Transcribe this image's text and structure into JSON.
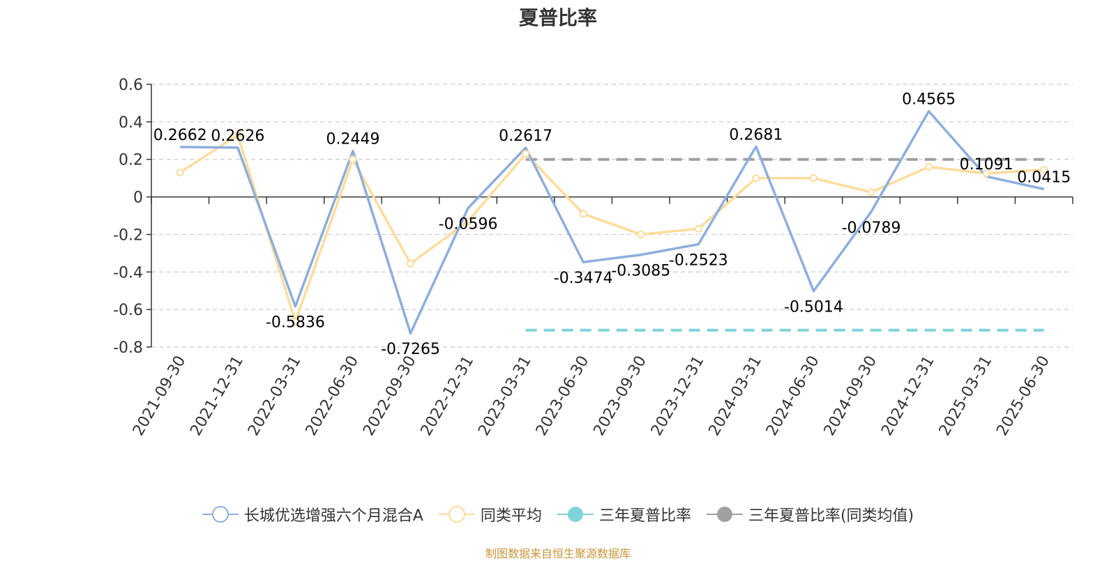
{
  "chart_data": {
    "type": "line",
    "title": "夏普比率",
    "categories": [
      "2021-09-30",
      "2021-12-31",
      "2022-03-31",
      "2022-06-30",
      "2022-09-30",
      "2022-12-31",
      "2023-03-31",
      "2023-06-30",
      "2023-09-30",
      "2023-12-31",
      "2024-03-31",
      "2024-06-30",
      "2024-09-30",
      "2024-12-31",
      "2025-03-31",
      "2025-06-30"
    ],
    "ylim": [
      -0.8,
      0.6
    ],
    "yticks": [
      -0.8,
      -0.6,
      -0.4,
      -0.2,
      0,
      0.2,
      0.4,
      0.6
    ],
    "ytick_labels": [
      "-0.8",
      "-0.6",
      "-0.4",
      "-0.2",
      "0",
      "0.2",
      "0.4",
      "0.6"
    ],
    "grid": true,
    "legend_position": "bottom",
    "series": [
      {
        "name": "长城优选增强六个月混合A",
        "color": "#8eaedc",
        "values": [
          0.2662,
          0.2626,
          -0.5836,
          0.2449,
          -0.7265,
          -0.0596,
          0.2617,
          -0.3474,
          -0.3085,
          -0.2523,
          0.2681,
          -0.5014,
          -0.0789,
          0.4565,
          0.1091,
          0.0415
        ],
        "labels": [
          "0.2662",
          "0.2626",
          "-0.5836",
          "0.2449",
          "-0.7265",
          "-0.0596",
          "0.2617",
          "-0.3474",
          "-0.3085",
          "-0.2523",
          "0.2681",
          "-0.5014",
          "-0.0789",
          "0.4565",
          "0.1091",
          "0.0415"
        ]
      },
      {
        "name": "同类平均",
        "color": "#fddc9c",
        "values": [
          0.13,
          0.33,
          -0.665,
          0.2,
          -0.355,
          -0.13,
          0.23,
          -0.09,
          -0.2,
          -0.17,
          0.1,
          0.1,
          0.025,
          0.16,
          0.125,
          0.145
        ]
      },
      {
        "name": "三年夏普比率",
        "color": "#7fd4d8",
        "type": "reference",
        "value": -0.71,
        "start_category": "2023-03-31"
      },
      {
        "name": "三年夏普比率(同类均值)",
        "color": "#a0a0a0",
        "type": "reference",
        "value": 0.2,
        "start_category": "2023-03-31"
      }
    ]
  },
  "source_text": "制图数据来自恒生聚源数据库"
}
